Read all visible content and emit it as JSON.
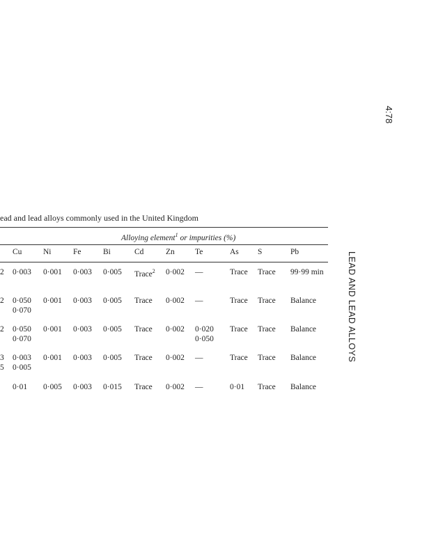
{
  "page_number": "4:78",
  "running_head": "LEAD AND LEAD ALLOYS",
  "caption": "ead and lead alloys commonly used in the United Kingdom",
  "group_header": {
    "text": "Alloying element",
    "sup": "1",
    "rest": " or impurities (%)"
  },
  "columns": [
    "Cu",
    "Ni",
    "Fe",
    "Bi",
    "Cd",
    "Zn",
    "Te",
    "As",
    "S",
    "Pb"
  ],
  "rows": [
    {
      "stub": [
        "2"
      ],
      "cells": [
        [
          "0·003"
        ],
        [
          "0·001"
        ],
        [
          "0·003"
        ],
        [
          "0·005"
        ],
        [
          "Trace"
        ],
        [
          "0·002"
        ],
        [
          "—"
        ],
        [
          "Trace"
        ],
        [
          "Trace"
        ],
        [
          "99·99 min"
        ]
      ],
      "cd_sup": "2"
    },
    {
      "stub": [
        "2"
      ],
      "cells": [
        [
          "0·050",
          "0·070"
        ],
        [
          "0·001"
        ],
        [
          "0·003"
        ],
        [
          "0·005"
        ],
        [
          "Trace"
        ],
        [
          "0·002"
        ],
        [
          "—"
        ],
        [
          "Trace"
        ],
        [
          "Trace"
        ],
        [
          "Balance"
        ]
      ]
    },
    {
      "stub": [
        "2"
      ],
      "cells": [
        [
          "0·050",
          "0·070"
        ],
        [
          "0·001"
        ],
        [
          "0·003"
        ],
        [
          "0·005"
        ],
        [
          "Trace"
        ],
        [
          "0·002"
        ],
        [
          "0·020",
          "0·050"
        ],
        [
          "Trace"
        ],
        [
          "Trace"
        ],
        [
          "Balance"
        ]
      ]
    },
    {
      "stub": [
        "3",
        "5"
      ],
      "cells": [
        [
          "0·003",
          "0·005"
        ],
        [
          "0·001"
        ],
        [
          "0·003"
        ],
        [
          "0·005"
        ],
        [
          "Trace"
        ],
        [
          "0·002"
        ],
        [
          "—"
        ],
        [
          "Trace"
        ],
        [
          "Trace"
        ],
        [
          "Balance"
        ]
      ]
    },
    {
      "stub": [],
      "cells": [
        [
          "0·01"
        ],
        [
          "0·005"
        ],
        [
          "0·003"
        ],
        [
          "0·015"
        ],
        [
          "Trace"
        ],
        [
          "0·002"
        ],
        [
          "—"
        ],
        [
          "0·01"
        ],
        [
          "Trace"
        ],
        [
          "Balance"
        ]
      ]
    }
  ]
}
